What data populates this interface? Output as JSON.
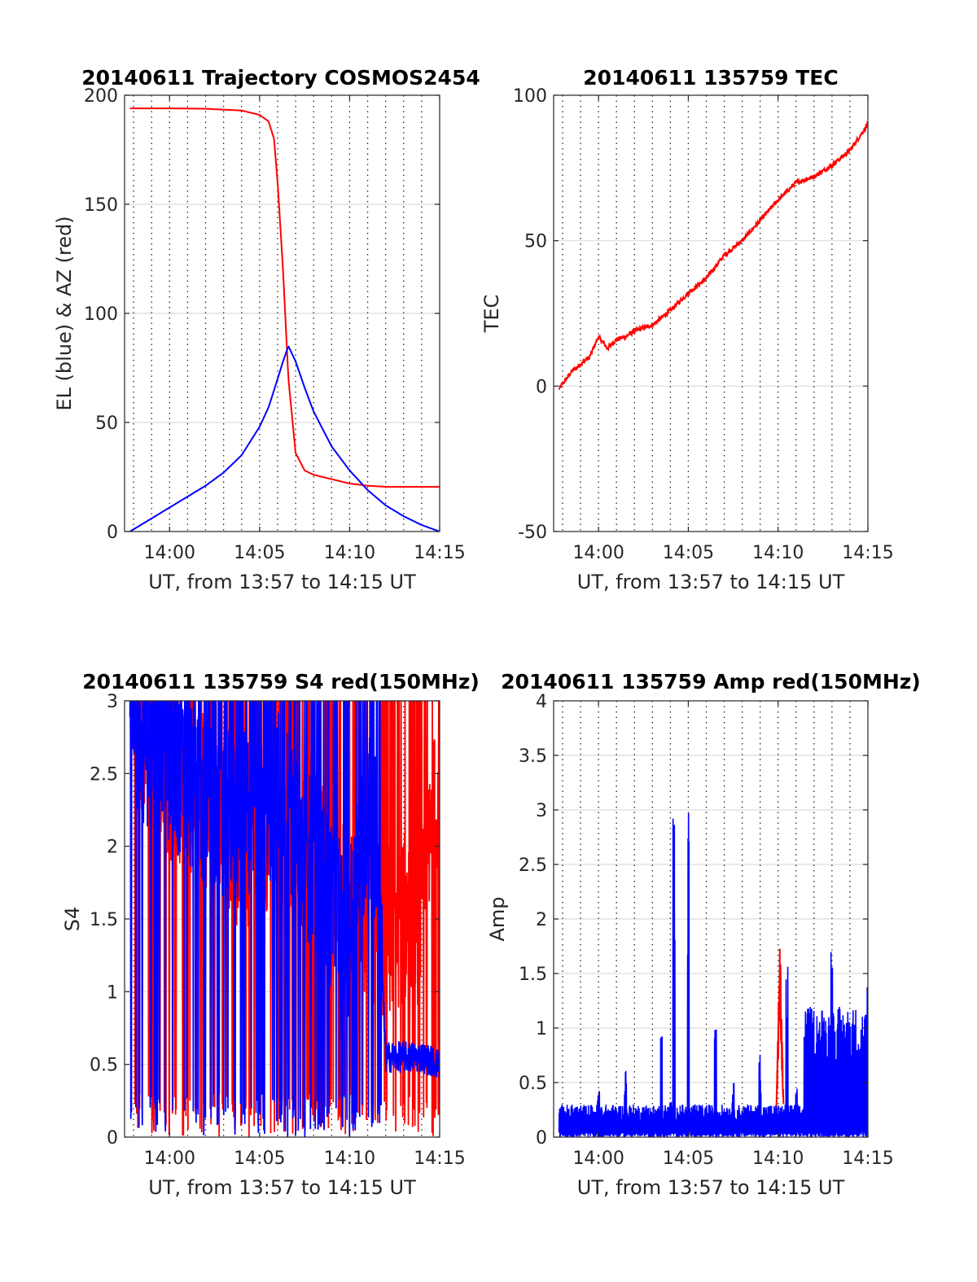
{
  "colors": {
    "az": "#ff0000",
    "el": "#0000ff",
    "tec": "#ff0000",
    "s4_red": "#ff0000",
    "s4_blue": "#0000ff",
    "amp_red": "#ff0000",
    "amp_blue": "#0000ff"
  },
  "chart_data": [
    {
      "type": "line",
      "title": "20140611 Trajectory COSMOS2454",
      "xlabel": "UT, from 13:57 to 14:15 UT",
      "ylabel": "EL (blue) & AZ (red)",
      "xticks": [
        "14:00",
        "14:05",
        "14:10",
        "14:15"
      ],
      "xlim_minutes": [
        -2.5,
        15
      ],
      "yticks": [
        "0",
        "50",
        "100",
        "150",
        "200"
      ],
      "ylim": [
        0,
        200
      ],
      "grid": "y-major solid, x-minor dotted each minute",
      "series": [
        {
          "name": "AZ (red)",
          "color": "#ff0000",
          "x": [
            -2.2,
            0,
            2,
            4,
            5,
            5.5,
            5.8,
            6.0,
            6.3,
            6.6,
            7.0,
            7.5,
            8,
            9,
            10,
            11,
            12,
            13,
            15
          ],
          "y": [
            194,
            194,
            193.8,
            193,
            191,
            188,
            180,
            160,
            120,
            70,
            36,
            28,
            26,
            24,
            22,
            21,
            20.5,
            20.5,
            20.5
          ]
        },
        {
          "name": "EL (blue)",
          "color": "#0000ff",
          "x": [
            -2.2,
            -1,
            0,
            1,
            2,
            3,
            4,
            5,
            5.5,
            6,
            6.3,
            6.6,
            7,
            7.5,
            8,
            9,
            10,
            11,
            12,
            13,
            14,
            15
          ],
          "y": [
            0,
            6,
            11,
            16,
            21,
            27,
            35,
            48,
            57,
            70,
            78,
            85,
            78,
            66,
            55,
            39,
            28,
            19,
            12,
            7,
            3,
            0
          ]
        }
      ]
    },
    {
      "type": "line",
      "title": "20140611 135759 TEC",
      "xlabel": "UT, from 13:57 to 14:15 UT",
      "ylabel": "TEC",
      "xticks": [
        "14:00",
        "14:05",
        "14:10",
        "14:15"
      ],
      "xlim_minutes": [
        -2.5,
        15
      ],
      "yticks": [
        "-50",
        "0",
        "50",
        "100"
      ],
      "ylim": [
        -50,
        100
      ],
      "grid": "y-major solid, x-minor dotted each minute",
      "series": [
        {
          "name": "TEC",
          "color": "#ff0000",
          "x": [
            -2.2,
            -1.5,
            -0.5,
            0,
            0.5,
            1,
            1.5,
            2,
            3,
            4,
            5,
            6,
            7,
            8,
            9,
            10,
            11,
            12,
            13,
            14,
            15
          ],
          "y": [
            -1,
            5,
            10,
            17,
            13,
            16,
            17,
            19,
            21,
            26,
            32,
            37,
            45,
            50,
            57,
            64,
            70,
            72,
            76,
            81,
            90
          ]
        }
      ]
    },
    {
      "type": "line",
      "title": "20140611 135759 S4 red(150MHz)",
      "xlabel": "UT, from 13:57 to 14:15 UT",
      "ylabel": "S4",
      "xticks": [
        "14:00",
        "14:05",
        "14:10",
        "14:15"
      ],
      "xlim_minutes": [
        -2.5,
        15
      ],
      "yticks": [
        "0",
        "0.5",
        "1",
        "1.5",
        "2",
        "2.5",
        "3"
      ],
      "ylim": [
        0,
        3
      ],
      "grid": "y-major solid, x-minor dotted each minute",
      "series": [
        {
          "name": "S4 red",
          "color": "#ff0000",
          "x": [
            -2.2,
            -1,
            0,
            2,
            4,
            6,
            8,
            10,
            11.5,
            12,
            13,
            14,
            15
          ],
          "y": [
            3,
            2.7,
            2.5,
            2.3,
            2.0,
            2.2,
            2.0,
            1.5,
            1.4,
            1.4,
            1.5,
            1.5,
            2.5
          ]
        },
        {
          "name": "S4 blue",
          "color": "#0000ff",
          "x": [
            -2.2,
            -1,
            0,
            2,
            4,
            6,
            7,
            8,
            9,
            10,
            11,
            11.5,
            12,
            13,
            14,
            15
          ],
          "y": [
            2.8,
            2.7,
            2.6,
            2.3,
            2.2,
            2.4,
            2.0,
            1.9,
            1.6,
            1.4,
            2.3,
            2.0,
            0.55,
            0.55,
            0.55,
            0.5
          ]
        }
      ]
    },
    {
      "type": "line",
      "title": "20140611 135759 Amp red(150MHz)",
      "xlabel": "UT, from 13:57 to 14:15 UT",
      "ylabel": "Amp",
      "xticks": [
        "14:00",
        "14:05",
        "14:10",
        "14:15"
      ],
      "xlim_minutes": [
        -2.5,
        15
      ],
      "yticks": [
        "0",
        "0.5",
        "1",
        "1.5",
        "2",
        "2.5",
        "3",
        "3.5",
        "4"
      ],
      "ylim": [
        0,
        4
      ],
      "grid": "y-major solid, x-minor dotted each minute",
      "series": [
        {
          "name": "Amp red",
          "color": "#ff0000",
          "x": [
            9.9,
            10.1,
            10.3
          ],
          "y": [
            0.3,
            1.83,
            0.35
          ]
        },
        {
          "name": "Amp blue",
          "color": "#0000ff",
          "x": [
            -2.2,
            0,
            1.5,
            3.5,
            4.0,
            4.2,
            5.0,
            6.5,
            7.5,
            9.0,
            10.5,
            11.0,
            11.5,
            13.0,
            15.0
          ],
          "y": [
            0.4,
            0.48,
            0.68,
            1.12,
            0.35,
            2.95,
            3.2,
            1.37,
            0.5,
            0.8,
            1.75,
            0.45,
            1.2,
            1.84,
            1.48
          ]
        }
      ]
    }
  ]
}
